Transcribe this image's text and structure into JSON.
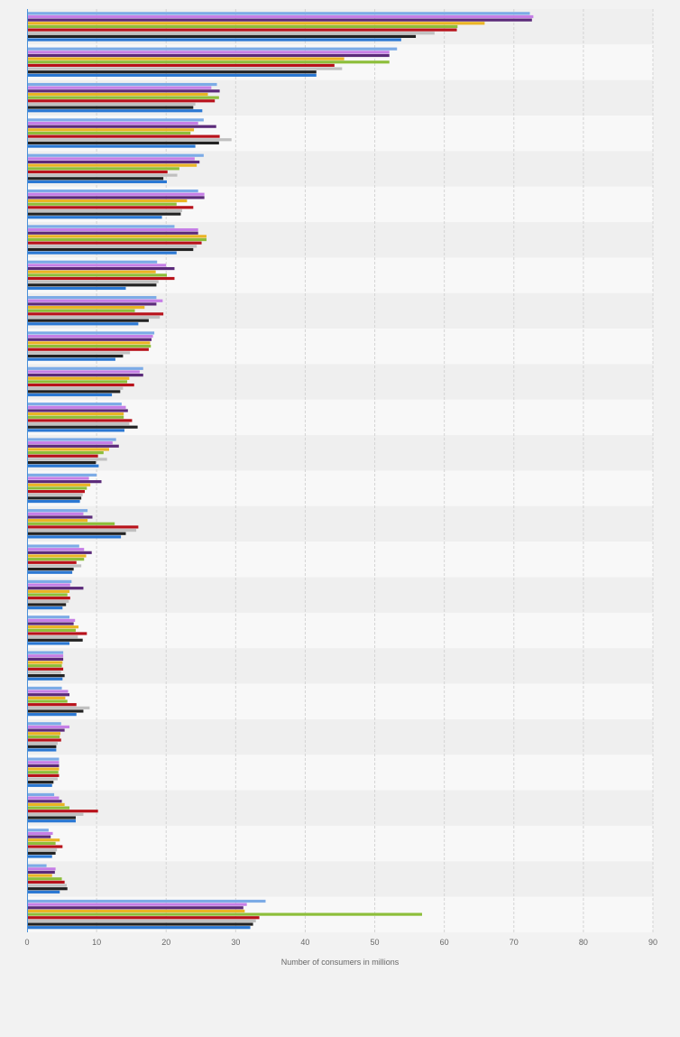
{
  "chart_data": {
    "type": "bar",
    "orientation": "horizontal",
    "xlabel": "Number of consumers in millions",
    "xlim": [
      0,
      90
    ],
    "x_ticks": [
      "0",
      "10",
      "20",
      "30",
      "40",
      "50",
      "60",
      "70",
      "80",
      "90"
    ],
    "grid": "vertical dashed",
    "legend": "none",
    "series_colors": [
      "#7cabe6",
      "#c67ee6",
      "#5b2a7a",
      "#eab424",
      "#8dbe3a",
      "#b8121b",
      "#c0c0c0",
      "#222222",
      "#2b78d3"
    ],
    "values": [
      [
        72.3,
        72.8,
        72.6,
        65.8,
        61.9,
        61.8,
        58.6,
        55.9,
        53.8
      ],
      [
        53.2,
        52.1,
        52.1,
        45.6,
        52.1,
        44.2,
        45.3,
        41.6,
        41.6
      ],
      [
        27.3,
        26.5,
        27.7,
        26.0,
        27.6,
        27.0,
        24.2,
        23.9,
        25.2
      ],
      [
        25.4,
        24.6,
        27.2,
        24.0,
        23.5,
        27.7,
        29.4,
        27.6,
        24.2
      ],
      [
        25.4,
        24.1,
        24.8,
        24.4,
        21.9,
        20.2,
        21.6,
        19.6,
        20.1
      ],
      [
        24.6,
        25.5,
        25.5,
        23.0,
        21.5,
        23.9,
        22.3,
        22.1,
        19.4
      ],
      [
        21.2,
        24.6,
        24.6,
        25.8,
        25.8,
        25.1,
        24.4,
        23.9,
        21.5
      ],
      [
        18.7,
        20.0,
        21.2,
        18.5,
        20.1,
        21.2,
        18.9,
        18.6,
        14.2
      ],
      [
        18.6,
        19.5,
        18.6,
        16.9,
        15.5,
        19.6,
        19.1,
        17.5,
        16.0
      ],
      [
        18.3,
        18.1,
        17.9,
        17.7,
        17.8,
        17.5,
        14.8,
        13.8,
        12.7
      ],
      [
        16.7,
        16.2,
        16.7,
        14.7,
        14.4,
        15.4,
        13.8,
        13.4,
        12.2
      ],
      [
        13.6,
        14.2,
        14.5,
        13.9,
        13.9,
        15.1,
        14.7,
        15.9,
        14.0
      ],
      [
        12.8,
        12.3,
        13.2,
        11.8,
        11.0,
        10.2,
        11.5,
        9.9,
        10.3
      ],
      [
        10.0,
        8.9,
        10.7,
        9.1,
        8.6,
        8.3,
        8.0,
        7.8,
        7.6
      ],
      [
        8.7,
        8.1,
        9.4,
        8.7,
        12.6,
        16.0,
        15.7,
        14.2,
        13.5
      ],
      [
        7.5,
        8.2,
        9.3,
        8.5,
        8.2,
        7.1,
        7.8,
        6.7,
        6.5
      ],
      [
        6.4,
        6.2,
        8.1,
        6.1,
        5.8,
        6.2,
        6.0,
        5.6,
        5.1
      ],
      [
        6.1,
        6.9,
        6.7,
        7.4,
        7.0,
        8.6,
        7.3,
        8.0,
        6.1
      ],
      [
        5.2,
        5.2,
        5.2,
        5.1,
        5.0,
        5.2,
        4.9,
        5.4,
        5.1
      ],
      [
        5.0,
        5.9,
        6.1,
        5.5,
        5.8,
        7.1,
        9.0,
        8.1,
        7.1
      ],
      [
        4.9,
        6.1,
        5.4,
        4.8,
        4.7,
        4.9,
        4.4,
        4.2,
        4.2
      ],
      [
        4.6,
        4.6,
        4.6,
        4.6,
        4.5,
        4.6,
        4.4,
        3.8,
        3.6
      ],
      [
        3.9,
        4.6,
        5.0,
        5.4,
        6.1,
        10.2,
        8.1,
        7.0,
        7.0
      ],
      [
        3.1,
        3.7,
        3.4,
        4.7,
        4.1,
        5.1,
        4.3,
        4.1,
        3.6
      ],
      [
        2.8,
        4.1,
        4.0,
        3.6,
        5.0,
        5.4,
        5.7,
        5.8,
        4.7
      ],
      [
        34.3,
        31.6,
        31.1,
        31.3,
        56.8,
        33.4,
        32.9,
        32.5,
        32.1
      ]
    ]
  }
}
